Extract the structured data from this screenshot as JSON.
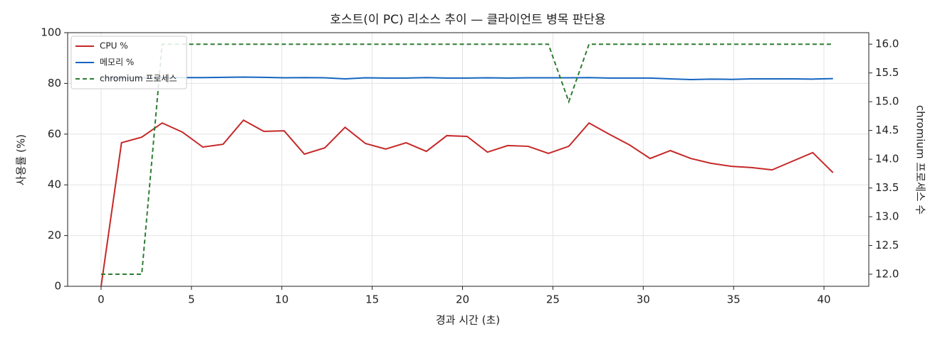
{
  "chart_data": {
    "type": "line",
    "title": "호스트(이 PC) 리소스 추이 — 클라이언트 병목 판단용",
    "x_label": "경과 시간 (초)",
    "y_label": "사용률 (%)",
    "y2_label": "chromium 프로세스 수",
    "x": [
      0,
      1.13,
      2.25,
      3.38,
      4.5,
      5.63,
      6.75,
      7.88,
      9,
      10.13,
      11.25,
      12.38,
      13.5,
      14.63,
      15.75,
      16.88,
      18,
      19.13,
      20.25,
      21.38,
      22.5,
      23.63,
      24.75,
      25.88,
      27,
      28.13,
      29.25,
      30.38,
      31.5,
      32.63,
      33.75,
      34.88,
      36,
      37.13,
      38.25,
      39.38,
      40.5
    ],
    "series": [
      {
        "name": "CPU %",
        "color": "#c62828",
        "linestyle": "solid",
        "values": [
          0,
          56.6,
          58.8,
          64.4,
          60.8,
          54.9,
          56.0,
          65.5,
          61.1,
          61.3,
          52.1,
          54.6,
          62.7,
          56.3,
          54.1,
          56.6,
          53.2,
          59.4,
          59.1,
          52.9,
          55.5,
          55.2,
          52.4,
          55.2,
          64.4,
          59.9,
          55.7,
          50.4,
          53.5,
          50.4,
          48.5,
          47.3,
          46.8,
          45.9,
          49.3,
          52.7,
          44.8
        ]
      },
      {
        "name": "메모리 %",
        "color": "#1565c0",
        "linestyle": "solid",
        "values": [
          82.0,
          82.1,
          82.2,
          82.3,
          82.3,
          82.3,
          82.4,
          82.5,
          82.4,
          82.2,
          82.3,
          82.2,
          81.8,
          82.2,
          82.1,
          82.1,
          82.3,
          82.1,
          82.1,
          82.2,
          82.1,
          82.2,
          82.2,
          82.2,
          82.3,
          82.1,
          82.1,
          82.1,
          81.8,
          81.5,
          81.7,
          81.6,
          81.8,
          81.8,
          81.8,
          81.7,
          81.9
        ]
      },
      {
        "name": "chromium 프로세스",
        "color": "#2e7d32",
        "linestyle": "dashed",
        "axis": "y2",
        "values": [
          12,
          12,
          12,
          16,
          16,
          16,
          16,
          16,
          16,
          16,
          16,
          16,
          16,
          16,
          16,
          16,
          16,
          16,
          16,
          16,
          16,
          16,
          16,
          15,
          16,
          16,
          16,
          16,
          16,
          16,
          16,
          16,
          16,
          16,
          16,
          16,
          16
        ]
      }
    ],
    "xlim": [
      -1.85,
      42.48
    ],
    "xticks": [
      0,
      5,
      10,
      15,
      20,
      25,
      30,
      35,
      40
    ],
    "ylim": [
      0,
      100
    ],
    "yticks": [
      0,
      20,
      40,
      60,
      80,
      100
    ],
    "y2lim": [
      11.79,
      16.2
    ],
    "y2ticks": [
      {
        "value": 12,
        "label": "12.0"
      },
      {
        "value": 12.5,
        "label": "12.5"
      },
      {
        "value": 13,
        "label": "13.0"
      },
      {
        "value": 13.5,
        "label": "13.5"
      },
      {
        "value": 14,
        "label": "14.0"
      },
      {
        "value": 14.5,
        "label": "14.5"
      },
      {
        "value": 15,
        "label": "15.0"
      },
      {
        "value": 15.5,
        "label": "15.5"
      },
      {
        "value": 16,
        "label": "16.0"
      }
    ],
    "grid": true,
    "legend": "upper-left"
  }
}
